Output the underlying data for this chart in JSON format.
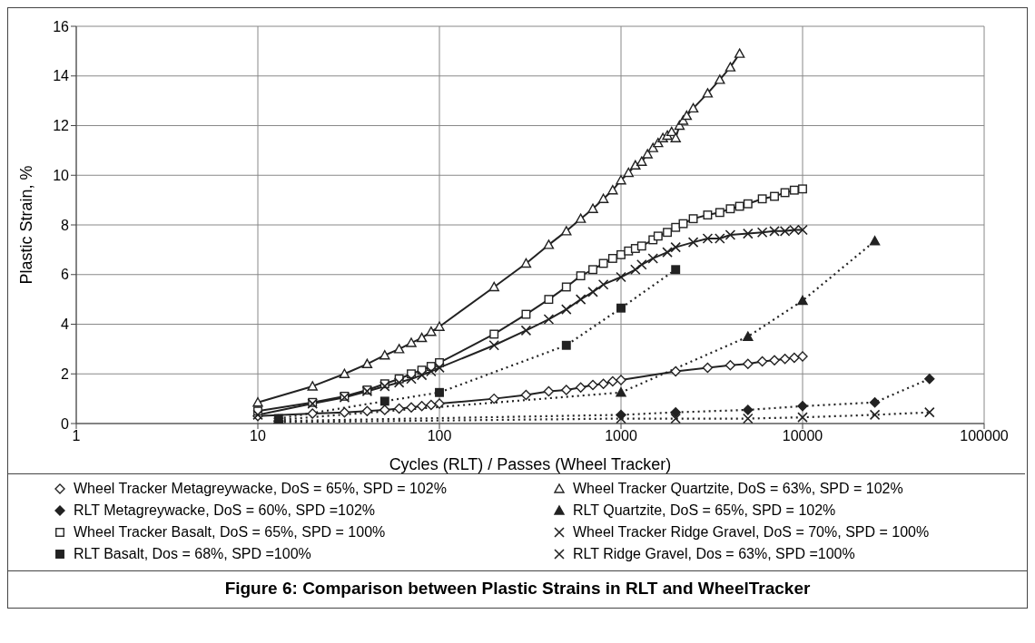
{
  "chart_data": {
    "type": "line",
    "title": "Figure 6: Comparison between Plastic Strains in RLT and WheelTracker",
    "xlabel": "Cycles (RLT) / Passes (Wheel Tracker)",
    "ylabel": "Plastic Strain, %",
    "log": "x",
    "xlim": [
      1,
      100000
    ],
    "xticks": [
      1,
      10,
      100,
      1000,
      10000,
      100000
    ],
    "ylim": [
      0,
      16
    ],
    "yticks": [
      0,
      2,
      4,
      6,
      8,
      10,
      12,
      14,
      16
    ],
    "grid": true,
    "legend": "bottom",
    "series": [
      {
        "name": "Wheel Tracker Metagreywacke, DoS = 65%, SPD = 102%",
        "color": "#222222",
        "marker": "diamond",
        "line_style": "solid",
        "x": [
          10,
          20,
          30,
          40,
          50,
          60,
          70,
          80,
          90,
          100,
          200,
          300,
          400,
          500,
          600,
          700,
          800,
          900,
          1000,
          2000,
          3000,
          4000,
          5000,
          6000,
          7000,
          8000,
          9000,
          10000
        ],
        "values": [
          0.3,
          0.4,
          0.45,
          0.5,
          0.55,
          0.6,
          0.65,
          0.7,
          0.75,
          0.8,
          1.0,
          1.15,
          1.3,
          1.35,
          1.45,
          1.55,
          1.6,
          1.7,
          1.75,
          2.1,
          2.25,
          2.35,
          2.4,
          2.5,
          2.55,
          2.6,
          2.65,
          2.7
        ]
      },
      {
        "name": "Wheel Tracker Quartzite, DoS = 63%, SPD = 102%",
        "color": "#222222",
        "marker": "triangle",
        "line_style": "solid",
        "x": [
          10,
          20,
          30,
          40,
          50,
          60,
          70,
          80,
          90,
          100,
          200,
          300,
          400,
          500,
          600,
          700,
          800,
          900,
          1000,
          1100,
          1200,
          1300,
          1400,
          1500,
          1600,
          1700,
          1800,
          1900,
          2000,
          2100,
          2200,
          2300,
          2500,
          3000,
          3500,
          4000,
          4500
        ],
        "values": [
          0.85,
          1.5,
          2.0,
          2.4,
          2.75,
          3.0,
          3.25,
          3.45,
          3.7,
          3.9,
          5.5,
          6.45,
          7.2,
          7.75,
          8.25,
          8.65,
          9.05,
          9.4,
          9.8,
          10.1,
          10.4,
          10.55,
          10.85,
          11.1,
          11.3,
          11.5,
          11.6,
          11.75,
          11.5,
          12.0,
          12.2,
          12.4,
          12.7,
          13.3,
          13.85,
          14.35,
          14.9
        ]
      },
      {
        "name": "RLT Metagreywacke, DoS = 60%, SPD =102%",
        "color": "#222222",
        "marker": "diamond",
        "line_style": "dotted",
        "x": [
          13,
          1000,
          2000,
          5000,
          10000,
          25000,
          50000
        ],
        "values": [
          0.1,
          0.35,
          0.45,
          0.55,
          0.7,
          0.85,
          1.8
        ]
      },
      {
        "name": "RLT Quartzite, DoS = 65%, SPD = 102%",
        "color": "#222222",
        "marker": "triangle",
        "line_style": "dotted",
        "x": [
          13,
          1000,
          5000,
          10000,
          25000
        ],
        "values": [
          0.15,
          1.25,
          3.5,
          4.95,
          7.35
        ]
      },
      {
        "name": "Wheel Tracker Basalt, DoS = 65%, SPD = 100%",
        "color": "#222222",
        "marker": "square",
        "line_style": "solid",
        "x": [
          10,
          20,
          30,
          40,
          50,
          60,
          70,
          80,
          90,
          100,
          200,
          300,
          400,
          500,
          600,
          700,
          800,
          900,
          1000,
          1100,
          1200,
          1300,
          1500,
          1600,
          1800,
          2000,
          2200,
          2500,
          3000,
          3500,
          4000,
          4500,
          5000,
          6000,
          7000,
          8000,
          9000,
          10000
        ],
        "values": [
          0.5,
          0.85,
          1.1,
          1.35,
          1.6,
          1.8,
          2.0,
          2.15,
          2.3,
          2.45,
          3.6,
          4.4,
          5.0,
          5.5,
          5.95,
          6.2,
          6.45,
          6.65,
          6.8,
          6.95,
          7.05,
          7.15,
          7.4,
          7.55,
          7.7,
          7.9,
          8.05,
          8.25,
          8.4,
          8.5,
          8.65,
          8.75,
          8.85,
          9.05,
          9.15,
          9.3,
          9.4,
          9.45
        ]
      },
      {
        "name": "Wheel Tracker Ridge Gravel, DoS = 70%, SPD = 100%",
        "color": "#222222",
        "marker": "cross",
        "line_style": "solid",
        "x": [
          10,
          20,
          30,
          40,
          50,
          60,
          70,
          80,
          90,
          100,
          200,
          300,
          400,
          500,
          600,
          700,
          800,
          1000,
          1200,
          1300,
          1500,
          1800,
          2000,
          2500,
          3000,
          3500,
          4000,
          5000,
          6000,
          7000,
          8000,
          9000,
          10000
        ],
        "values": [
          0.35,
          0.8,
          1.05,
          1.3,
          1.5,
          1.65,
          1.8,
          1.95,
          2.1,
          2.25,
          3.15,
          3.75,
          4.2,
          4.6,
          5.0,
          5.3,
          5.6,
          5.9,
          6.2,
          6.4,
          6.65,
          6.9,
          7.1,
          7.3,
          7.45,
          7.45,
          7.6,
          7.65,
          7.7,
          7.75,
          7.75,
          7.8,
          7.8
        ]
      },
      {
        "name": "RLT Basalt, Dos = 68%, SPD =100%",
        "color": "#222222",
        "marker": "square",
        "line_style": "dotted",
        "x": [
          13,
          50,
          100,
          500,
          1000,
          2000
        ],
        "values": [
          0.2,
          0.9,
          1.25,
          3.15,
          4.65,
          6.2
        ]
      },
      {
        "name": "RLT Ridge Gravel, Dos = 63%, SPD =100%",
        "color": "#222222",
        "marker": "cross",
        "line_style": "dotted",
        "x": [
          13,
          1000,
          2000,
          5000,
          10000,
          25000,
          50000
        ],
        "values": [
          0.05,
          0.2,
          0.2,
          0.2,
          0.25,
          0.35,
          0.45
        ]
      }
    ]
  }
}
